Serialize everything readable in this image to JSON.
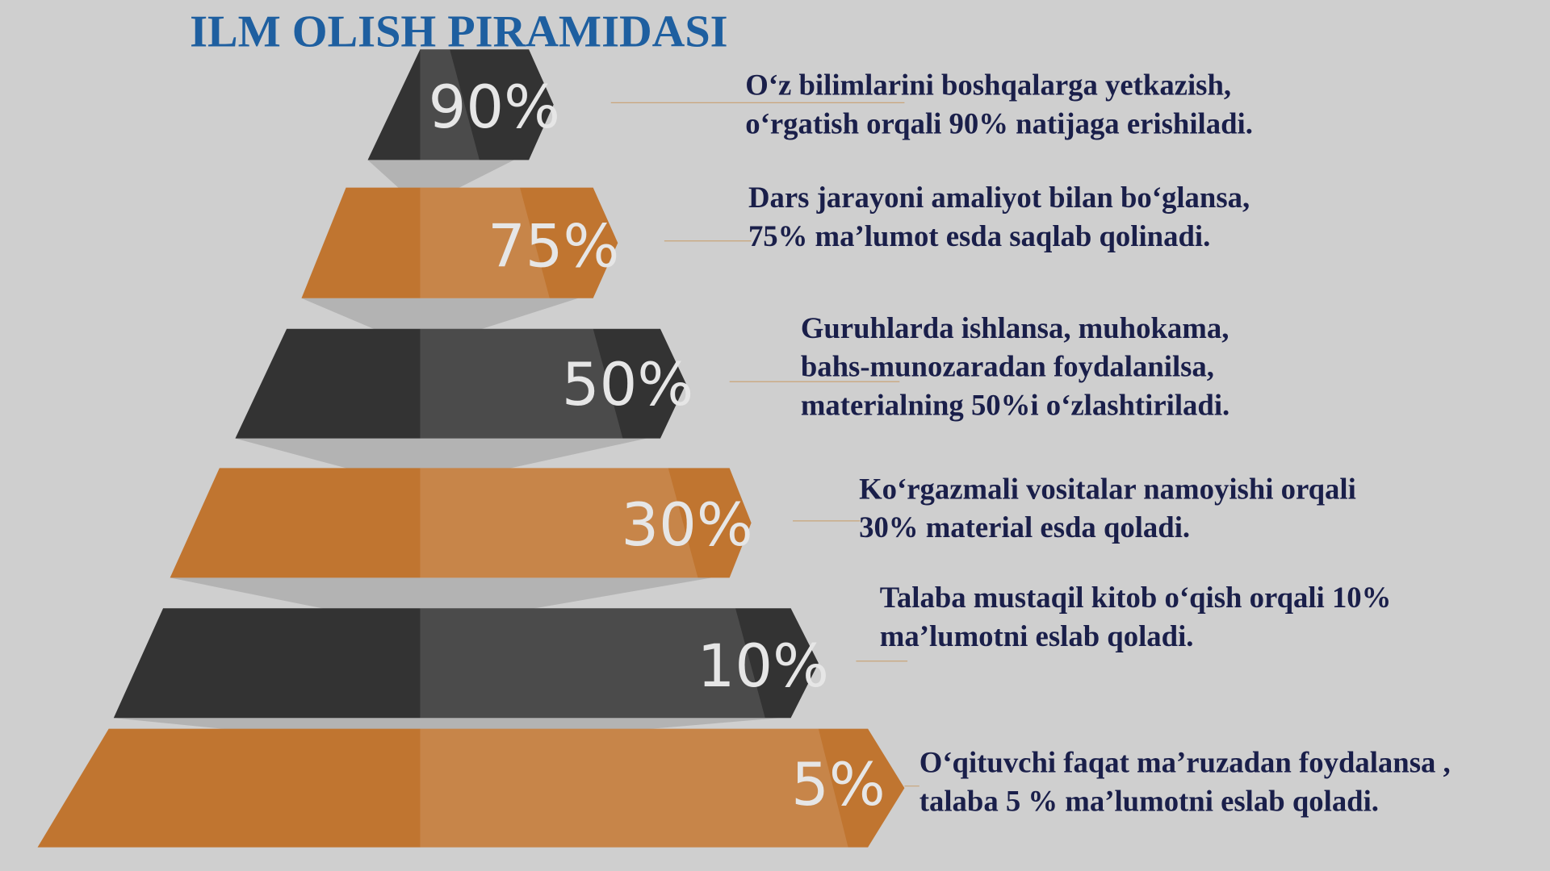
{
  "title": "ILM OLISH PIRAMIDASI",
  "levels": [
    {
      "label": "90%",
      "lines": [
        "O‘z bilimlarini boshqalarga yetkazish,",
        "o‘rgatish orqali 90% natijaga erishiladi."
      ]
    },
    {
      "label": "75%",
      "lines": [
        "Dars jarayoni amaliyot bilan bo‘glansa,",
        "75% ma’lumot esda saqlab qolinadi."
      ]
    },
    {
      "label": "50%",
      "lines": [
        "Guruhlarda ishlansa, muhokama,",
        "bahs-munozaradan  foydalanilsa,",
        "materialning 50%i  o‘zlashtiriladi."
      ]
    },
    {
      "label": "30%",
      "lines": [
        "Ko‘rgazmali vositalar namoyishi orqali",
        "30% material esda qoladi."
      ]
    },
    {
      "label": "10%",
      "lines": [
        "Talaba mustaqil kitob o‘qish orqali 10%",
        "ma’lumotni eslab qoladi."
      ]
    },
    {
      "label": "5%",
      "lines": [
        "O‘qituvchi faqat ma’ruzadan foydalansa ,",
        "talaba 5 % ma’lumotni eslab qoladi."
      ]
    }
  ]
}
